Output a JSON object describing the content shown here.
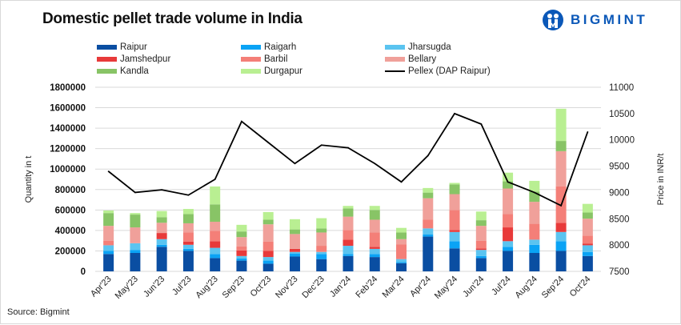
{
  "header": {
    "title": "Domestic pellet trade volume in India",
    "brand": "BIGMINT"
  },
  "footer": {
    "source": "Source: Bigmint"
  },
  "chart_data": {
    "type": "bar",
    "subtype": "stacked-bar-with-line",
    "title": "Domestic pellet trade volume in India",
    "xlabel": "",
    "ylabel": "Quantity in t",
    "y2label": "Price in INR/t",
    "ylim": [
      0,
      1800000
    ],
    "y_ticks": [
      "0",
      "200000",
      "400000",
      "600000",
      "800000",
      "1000000",
      "1200000",
      "1400000",
      "1600000",
      "1800000"
    ],
    "y2lim": [
      7500,
      11000
    ],
    "y2_ticks": [
      "7500",
      "8000",
      "8500",
      "9000",
      "9500",
      "10000",
      "10500",
      "11000"
    ],
    "grid": true,
    "legend_position": "top",
    "categories": [
      "Apr'23",
      "May'23",
      "Jun'23",
      "Jul'23",
      "Aug'23",
      "Sep'23",
      "Oct'23",
      "Nov'23",
      "Dec'23",
      "Jan'24",
      "Feb'24",
      "Mar'24",
      "Apr'24",
      "May'24",
      "Jun'24",
      "Jul'24",
      "Aug'24",
      "Sep'24",
      "Oct'24"
    ],
    "series": [
      {
        "name": "Raipur",
        "color": "#0a4ea2",
        "values": [
          170000,
          180000,
          240000,
          200000,
          130000,
          105000,
          75000,
          145000,
          120000,
          150000,
          140000,
          80000,
          340000,
          225000,
          130000,
          200000,
          180000,
          200000,
          150000
        ]
      },
      {
        "name": "Raigarh",
        "color": "#0aa3f5",
        "values": [
          30000,
          30000,
          20000,
          20000,
          40000,
          20000,
          30000,
          30000,
          50000,
          20000,
          30000,
          10000,
          20000,
          70000,
          20000,
          40000,
          80000,
          95000,
          40000
        ]
      },
      {
        "name": "Jharsugda",
        "color": "#5bc4f0",
        "values": [
          55000,
          65000,
          55000,
          40000,
          60000,
          25000,
          35000,
          15000,
          20000,
          80000,
          50000,
          30000,
          60000,
          90000,
          60000,
          55000,
          50000,
          90000,
          65000
        ]
      },
      {
        "name": "Jamshedpur",
        "color": "#e83a3a",
        "values": [
          0,
          0,
          60000,
          30000,
          65000,
          55000,
          60000,
          30000,
          0,
          60000,
          20000,
          0,
          0,
          20000,
          15000,
          135000,
          0,
          90000,
          15000
        ]
      },
      {
        "name": "Barbil",
        "color": "#f47f78",
        "values": [
          45000,
          0,
          0,
          90000,
          100000,
          40000,
          90000,
          0,
          60000,
          95000,
          140000,
          145000,
          85000,
          195000,
          75000,
          130000,
          155000,
          355000,
          80000
        ]
      },
      {
        "name": "Bellary",
        "color": "#f0a09a",
        "values": [
          145000,
          155000,
          100000,
          90000,
          90000,
          90000,
          170000,
          145000,
          130000,
          130000,
          125000,
          50000,
          210000,
          155000,
          145000,
          250000,
          215000,
          345000,
          165000
        ]
      },
      {
        "name": "Kandla",
        "color": "#88c466",
        "values": [
          125000,
          125000,
          55000,
          90000,
          170000,
          55000,
          45000,
          45000,
          40000,
          80000,
          95000,
          65000,
          55000,
          95000,
          55000,
          70000,
          100000,
          100000,
          60000
        ]
      },
      {
        "name": "Durgapur",
        "color": "#b9ef92",
        "values": [
          25000,
          15000,
          60000,
          50000,
          175000,
          65000,
          75000,
          100000,
          100000,
          25000,
          40000,
          45000,
          45000,
          15000,
          85000,
          85000,
          105000,
          315000,
          85000
        ]
      }
    ],
    "line_series": {
      "name": "Pellex (DAP Raipur)",
      "color": "#000000",
      "axis": "right",
      "values": [
        9400,
        9000,
        9050,
        8950,
        9250,
        10350,
        9950,
        9550,
        9900,
        9850,
        9550,
        9200,
        9700,
        10500,
        10300,
        9200,
        9000,
        8750,
        10150
      ]
    },
    "legend": [
      "Raipur",
      "Raigarh",
      "Jharsugda",
      "Jamshedpur",
      "Barbil",
      "Bellary",
      "Kandla",
      "Durgapur",
      "Pellex (DAP Raipur)"
    ]
  }
}
